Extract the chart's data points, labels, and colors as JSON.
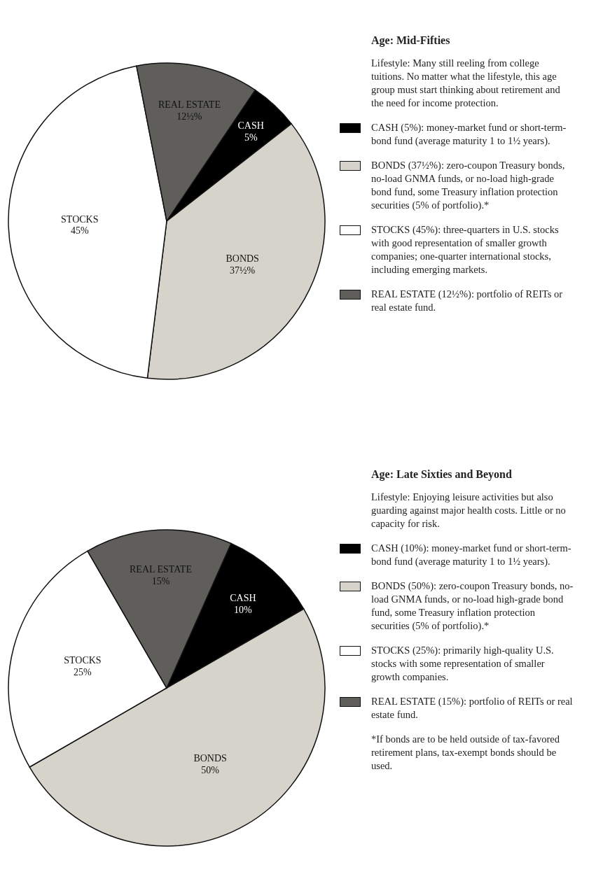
{
  "chart_data": [
    {
      "type": "pie",
      "title": "Age: Mid-Fifties",
      "subtitle": "Lifestyle: Many still reeling from college tuitions. No matter what the lifestyle, this age group must start thinking about retirement and the need for income protection.",
      "categories": [
        "CASH",
        "BONDS",
        "STOCKS",
        "REAL ESTATE"
      ],
      "values": [
        5,
        37.5,
        45,
        12.5
      ],
      "value_labels": [
        "5%",
        "37½%",
        "45%",
        "12½%"
      ],
      "colors": [
        "#000000",
        "#d6d4ca",
        "#ffffff",
        "#5f5e5a"
      ],
      "annotations": [
        "CASH (5%): money-market fund or short-term-bond fund (average maturity 1 to 1½ years).",
        "BONDS (37½%): zero-coupon Treasury bonds, no-load GNMA funds, or no-load high-grade bond fund, some Treasury inflation protection securities (5% of portfolio).*",
        "STOCKS (45%): three-quarters in U.S. stocks with good representation of smaller growth companies; one-quarter international stocks, including emerging markets.",
        "REAL ESTATE (12½%): portfolio of REITs or real estate fund."
      ]
    },
    {
      "type": "pie",
      "title": "Age: Late Sixties and Beyond",
      "subtitle": "Lifestyle: Enjoying leisure activities but also guarding against major health costs. Little or no capacity for risk.",
      "categories": [
        "CASH",
        "BONDS",
        "STOCKS",
        "REAL ESTATE"
      ],
      "values": [
        10,
        50,
        25,
        15
      ],
      "value_labels": [
        "10%",
        "50%",
        "25%",
        "15%"
      ],
      "colors": [
        "#000000",
        "#d6d4ca",
        "#ffffff",
        "#5f5e5a"
      ],
      "annotations": [
        "CASH (10%): money-market fund or short-term-bond fund (average maturity 1 to 1½ years).",
        "BONDS (50%): zero-coupon Treasury bonds, no-load GNMA funds, or no-load high-grade bond fund, some Treasury inflation protection securities (5% of portfolio).*",
        "STOCKS (25%): primarily high-quality U.S. stocks with some representation of smaller growth companies.",
        "REAL ESTATE (15%): portfolio of REITs or real estate fund.",
        "*If bonds are to be held outside of tax-favored retirement plans, tax-exempt bonds should be used."
      ]
    }
  ]
}
